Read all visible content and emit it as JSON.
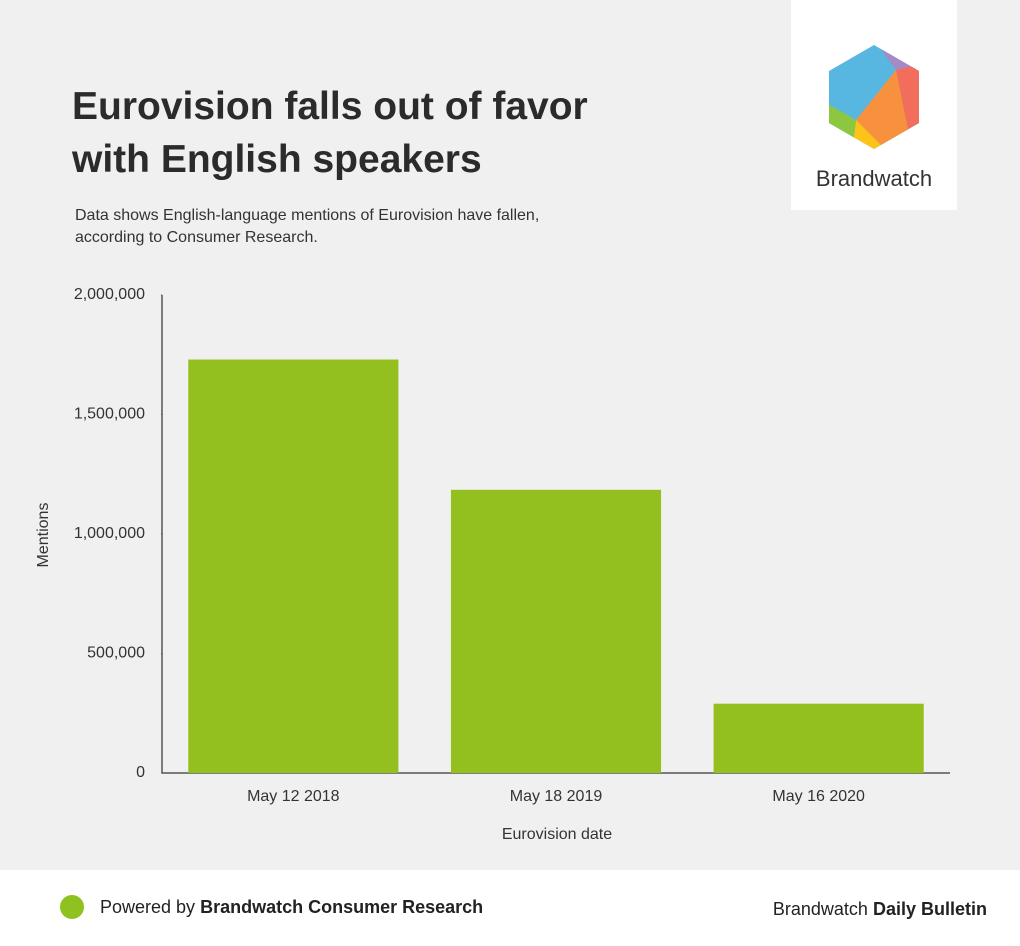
{
  "chart_data": {
    "type": "bar",
    "title": "Eurovision falls out of favor with English speakers",
    "subtitle": "Data shows English-language mentions of Eurovision have fallen, according to Consumer Research.",
    "x_label": "Eurovision date",
    "y_label": "Mentions",
    "categories": [
      "May 12 2018",
      "May 18 2019",
      "May 16 2020"
    ],
    "values": [
      1730000,
      1185000,
      290000
    ],
    "color": "#93c01f",
    "ylim": [
      0,
      2000000
    ],
    "yticks": [
      0,
      {
        "value": 500000,
        "label": "500,000"
      },
      {
        "value": 1000000,
        "label": "1,000,000"
      },
      {
        "value": 1500000,
        "label": "1,500,000"
      },
      {
        "value": 2000000,
        "label": "2,000,000"
      }
    ],
    "grid": false
  },
  "logo": {
    "text": "Brandwatch"
  },
  "footer": {
    "left": {
      "prefix": "Powered by",
      "bold": "Brandwatch Consumer Research"
    },
    "right": {
      "prefix": "Brandwatch",
      "bold": "Daily Bulletin"
    }
  }
}
